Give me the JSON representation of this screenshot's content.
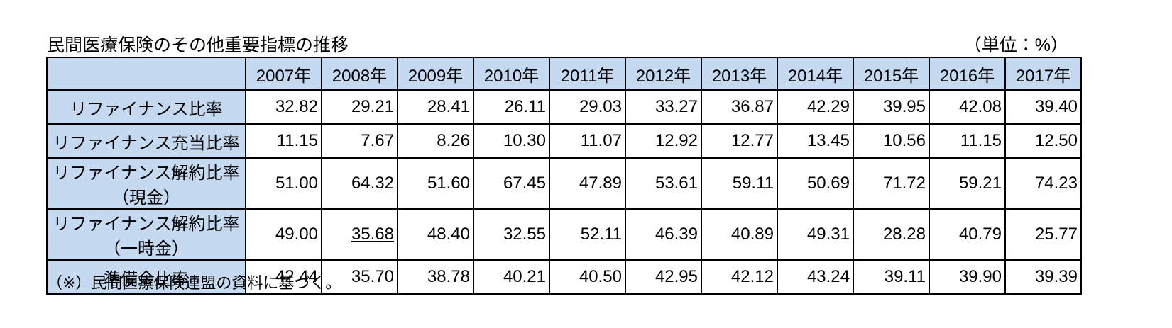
{
  "header": {
    "title": "民間医療保険のその他重要指標の推移",
    "unit": "（単位：%）"
  },
  "table": {
    "columns": [
      "2007年",
      "2008年",
      "2009年",
      "2010年",
      "2011年",
      "2012年",
      "2013年",
      "2014年",
      "2015年",
      "2016年",
      "2017年"
    ],
    "rows": [
      {
        "label": "リファイナンス比率",
        "values": [
          "32.82",
          "29.21",
          "28.41",
          "26.11",
          "29.03",
          "33.27",
          "36.87",
          "42.29",
          "39.95",
          "42.08",
          "39.40"
        ]
      },
      {
        "label": "リファイナンス充当比率",
        "values": [
          "11.15",
          "7.67",
          "8.26",
          "10.30",
          "11.07",
          "12.92",
          "12.77",
          "13.45",
          "10.56",
          "11.15",
          "12.50"
        ]
      },
      {
        "label": "リファイナンス解約比率（現金）",
        "values": [
          "51.00",
          "64.32",
          "51.60",
          "67.45",
          "47.89",
          "53.61",
          "59.11",
          "50.69",
          "71.72",
          "59.21",
          "74.23"
        ]
      },
      {
        "label": "リファイナンス解約比率（一時金）",
        "values": [
          "49.00",
          "35.68",
          "48.40",
          "32.55",
          "52.11",
          "46.39",
          "40.89",
          "49.31",
          "28.28",
          "40.79",
          "25.77"
        ]
      },
      {
        "label": "準備金比率",
        "values": [
          "42.44",
          "35.70",
          "38.78",
          "40.21",
          "40.50",
          "42.95",
          "42.12",
          "43.24",
          "39.11",
          "39.90",
          "39.39"
        ]
      }
    ]
  },
  "footnote": "（※）民間医療保険連盟の資料に基づく。"
}
